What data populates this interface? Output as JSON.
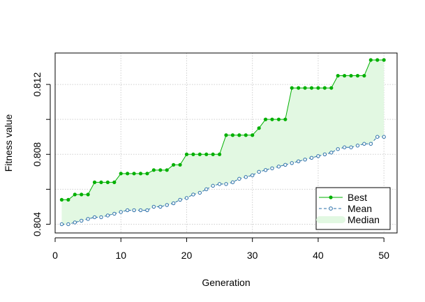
{
  "chart_data": {
    "type": "line",
    "xlabel": "Generation",
    "ylabel": "Fitness value",
    "xlim": [
      0,
      52
    ],
    "ylim": [
      0.8035,
      0.8138
    ],
    "x_ticks": [
      0,
      10,
      20,
      30,
      40,
      50
    ],
    "y_ticks": [
      0.804,
      0.806,
      0.808,
      0.81,
      0.812
    ],
    "y_tick_labels": [
      "0.804",
      "",
      "0.808",
      "",
      "0.812"
    ],
    "grid": true,
    "legend": {
      "placement": "bottom-right",
      "entries": [
        "Best",
        "Mean",
        "Median"
      ]
    },
    "colors": {
      "best": "#00b000",
      "mean": "#2a6fa8",
      "median_fill": "#e2f8e2"
    },
    "x": [
      1,
      2,
      3,
      4,
      5,
      6,
      7,
      8,
      9,
      10,
      11,
      12,
      13,
      14,
      15,
      16,
      17,
      18,
      19,
      20,
      21,
      22,
      23,
      24,
      25,
      26,
      27,
      28,
      29,
      30,
      31,
      32,
      33,
      34,
      35,
      36,
      37,
      38,
      39,
      40,
      41,
      42,
      43,
      44,
      45,
      46,
      47,
      48,
      49,
      50
    ],
    "series": [
      {
        "name": "Best",
        "values": [
          0.8054,
          0.8054,
          0.8057,
          0.8057,
          0.8057,
          0.8064,
          0.8064,
          0.8064,
          0.8064,
          0.8069,
          0.8069,
          0.8069,
          0.8069,
          0.8069,
          0.8071,
          0.8071,
          0.8071,
          0.8074,
          0.8074,
          0.808,
          0.808,
          0.808,
          0.808,
          0.808,
          0.808,
          0.8091,
          0.8091,
          0.8091,
          0.8091,
          0.8091,
          0.8095,
          0.81,
          0.81,
          0.81,
          0.81,
          0.8118,
          0.8118,
          0.8118,
          0.8118,
          0.8118,
          0.8118,
          0.8118,
          0.8125,
          0.8125,
          0.8125,
          0.8125,
          0.8125,
          0.8134,
          0.8134,
          0.8134
        ]
      },
      {
        "name": "Mean",
        "values": [
          0.804,
          0.804,
          0.8041,
          0.8042,
          0.8043,
          0.8044,
          0.8044,
          0.8045,
          0.8046,
          0.8047,
          0.8048,
          0.8048,
          0.8048,
          0.8048,
          0.805,
          0.805,
          0.8051,
          0.8052,
          0.8054,
          0.8055,
          0.8057,
          0.8058,
          0.806,
          0.8062,
          0.8063,
          0.8063,
          0.8064,
          0.8066,
          0.8067,
          0.8068,
          0.807,
          0.8071,
          0.8072,
          0.8073,
          0.8074,
          0.8075,
          0.8076,
          0.8077,
          0.8078,
          0.8079,
          0.808,
          0.8081,
          0.8083,
          0.8084,
          0.8084,
          0.8085,
          0.8086,
          0.8086,
          0.809,
          0.809
        ]
      },
      {
        "name": "Median",
        "type": "area-band",
        "lower_series": "Mean",
        "upper_series": "Best"
      }
    ]
  }
}
